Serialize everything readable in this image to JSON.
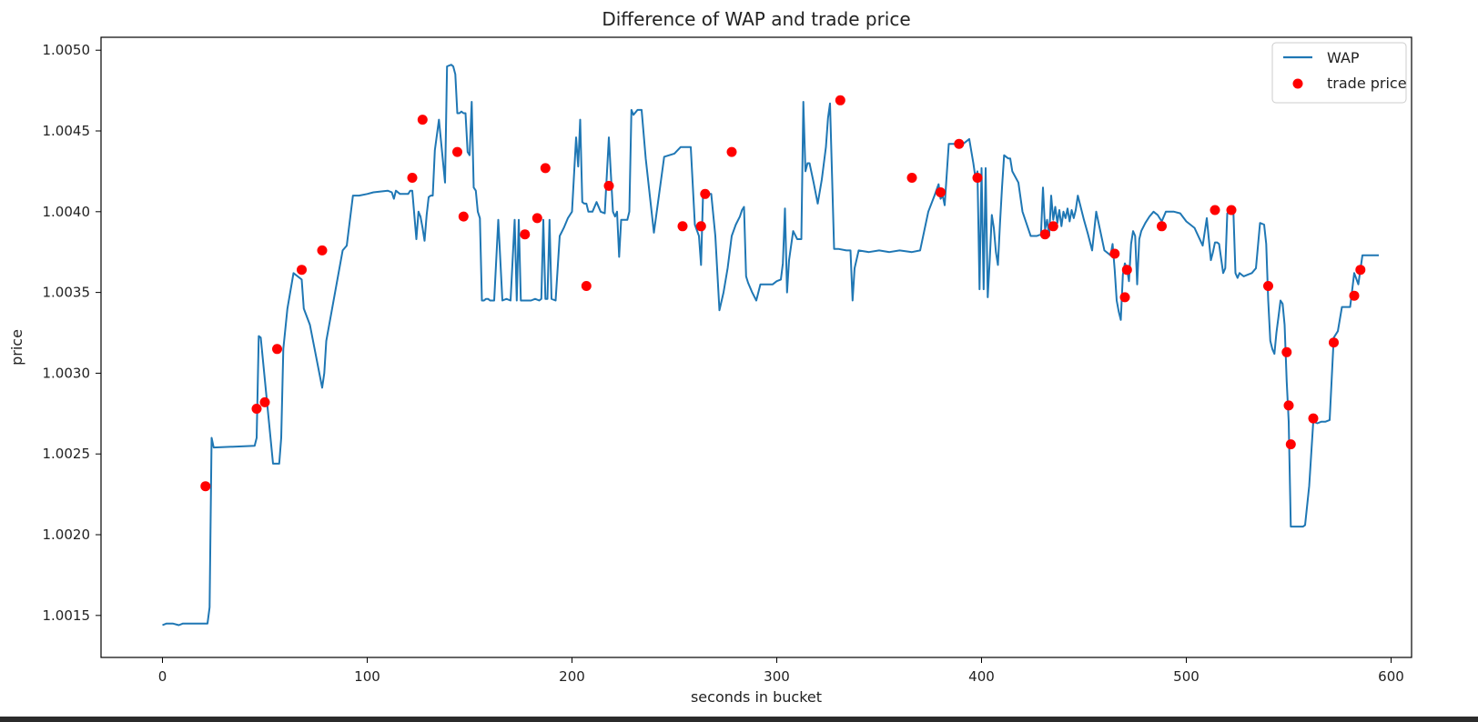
{
  "chart_data": {
    "type": "line",
    "title": "Difference of WAP and trade price",
    "xlabel": "seconds in bucket",
    "ylabel": "price",
    "xlim": [
      -30,
      610
    ],
    "ylim": [
      1.00124,
      1.00508
    ],
    "x_ticks": [
      0,
      100,
      200,
      300,
      400,
      500,
      600
    ],
    "x_tick_labels": [
      "0",
      "100",
      "200",
      "300",
      "400",
      "500",
      "600"
    ],
    "y_ticks": [
      1.0015,
      1.002,
      1.0025,
      1.003,
      1.0035,
      1.004,
      1.0045,
      1.005
    ],
    "y_tick_labels": [
      "1.0015",
      "1.0020",
      "1.0025",
      "1.0030",
      "1.0035",
      "1.0040",
      "1.0045",
      "1.0050"
    ],
    "grid": false,
    "legend_position": "top-right",
    "series": [
      {
        "name": "WAP",
        "kind": "line",
        "color": "#1f77b4",
        "x": [
          0,
          2,
          5,
          8,
          10,
          14,
          18,
          20,
          22,
          23,
          24,
          25,
          45,
          46,
          47,
          48,
          50,
          54,
          55,
          56,
          57,
          58,
          59,
          61,
          64,
          68,
          69,
          72,
          78,
          79,
          80,
          88,
          90,
          93,
          96,
          100,
          103,
          110,
          112,
          113,
          114,
          116,
          120,
          121,
          122,
          124,
          125,
          126,
          127,
          128,
          129,
          130,
          131,
          132,
          133,
          135,
          138,
          139,
          141,
          142,
          143,
          144,
          145,
          146,
          147,
          148,
          149,
          150,
          151,
          152,
          153,
          154,
          155,
          156,
          157,
          158,
          159,
          160,
          162,
          164,
          166,
          168,
          170,
          172,
          173,
          174,
          175,
          176,
          177,
          178,
          180,
          182,
          184,
          185,
          186,
          187,
          188,
          189,
          190,
          192,
          194,
          196,
          198,
          200,
          202,
          203,
          204,
          205,
          206,
          207,
          208,
          210,
          212,
          214,
          216,
          218,
          220,
          221,
          222,
          223,
          224,
          225,
          226,
          227,
          228,
          229,
          230,
          232,
          234,
          236,
          240,
          245,
          250,
          253,
          254,
          255,
          256,
          257,
          258,
          260,
          262,
          263,
          264,
          265,
          266,
          268,
          270,
          272,
          274,
          276,
          278,
          280,
          282,
          283,
          284,
          285,
          286,
          288,
          290,
          292,
          294,
          296,
          298,
          300,
          302,
          303,
          304,
          305,
          306,
          308,
          310,
          312,
          313,
          314,
          315,
          316,
          318,
          320,
          322,
          324,
          325,
          326,
          328,
          330,
          334,
          336,
          337,
          338,
          340,
          345,
          350,
          355,
          360,
          366,
          370,
          374,
          377,
          379,
          380,
          381,
          382,
          384,
          386,
          388,
          390,
          393,
          394,
          396,
          397,
          398,
          399,
          400,
          401,
          402,
          403,
          404,
          405,
          406,
          407,
          408,
          409,
          410,
          411,
          412,
          413,
          414,
          415,
          418,
          420,
          424,
          427,
          429,
          430,
          431,
          432,
          433,
          434,
          435,
          436,
          437,
          438,
          439,
          440,
          441,
          442,
          443,
          444,
          445,
          446,
          447,
          448,
          450,
          452,
          454,
          456,
          460,
          463,
          464,
          465,
          466,
          467,
          468,
          469,
          470,
          471,
          472,
          473,
          474,
          475,
          476,
          477,
          478,
          480,
          482,
          484,
          486,
          488,
          490,
          494,
          497,
          500,
          504,
          508,
          510,
          512,
          513,
          514,
          515,
          516,
          518,
          519,
          520,
          521,
          522,
          523,
          524,
          525,
          526,
          528,
          530,
          532,
          534,
          536,
          538,
          539,
          540,
          541,
          542,
          543,
          544,
          545,
          546,
          547,
          548,
          549,
          550,
          551,
          552,
          553,
          554,
          555,
          556,
          557,
          558,
          560,
          562,
          564,
          566,
          568,
          570,
          572,
          574,
          576,
          578,
          580,
          582,
          584,
          586,
          588,
          590,
          594
        ],
        "y": [
          1.00144,
          1.00145,
          1.00145,
          1.00144,
          1.00145,
          1.00145,
          1.00145,
          1.00145,
          1.00145,
          1.00155,
          1.0026,
          1.00254,
          1.00255,
          1.0026,
          1.00323,
          1.00322,
          1.00296,
          1.00244,
          1.00244,
          1.00244,
          1.00244,
          1.0026,
          1.00315,
          1.0034,
          1.00362,
          1.00358,
          1.0034,
          1.0033,
          1.00291,
          1.003,
          1.0032,
          1.00376,
          1.00379,
          1.0041,
          1.0041,
          1.00411,
          1.00412,
          1.00413,
          1.00412,
          1.00408,
          1.00413,
          1.00411,
          1.00411,
          1.00413,
          1.00413,
          1.00383,
          1.004,
          1.00397,
          1.0039,
          1.00382,
          1.00398,
          1.00409,
          1.0041,
          1.0041,
          1.00438,
          1.00457,
          1.00418,
          1.0049,
          1.00491,
          1.0049,
          1.00485,
          1.00461,
          1.00461,
          1.00462,
          1.00461,
          1.00461,
          1.00437,
          1.00435,
          1.00468,
          1.00415,
          1.00413,
          1.004,
          1.00396,
          1.00345,
          1.00345,
          1.00346,
          1.00346,
          1.00345,
          1.00345,
          1.00395,
          1.00345,
          1.00346,
          1.00345,
          1.00395,
          1.00345,
          1.00395,
          1.00345,
          1.00345,
          1.00345,
          1.00345,
          1.00345,
          1.00346,
          1.00345,
          1.00346,
          1.00395,
          1.00346,
          1.00346,
          1.00395,
          1.00346,
          1.00345,
          1.00385,
          1.0039,
          1.00396,
          1.004,
          1.00446,
          1.00428,
          1.00457,
          1.00406,
          1.00405,
          1.00405,
          1.004,
          1.004,
          1.00406,
          1.004,
          1.00399,
          1.00446,
          1.004,
          1.00397,
          1.004,
          1.00372,
          1.00395,
          1.00395,
          1.00395,
          1.00395,
          1.004,
          1.00463,
          1.0046,
          1.00463,
          1.00463,
          1.00433,
          1.00387,
          1.00434,
          1.00436,
          1.0044,
          1.0044,
          1.0044,
          1.0044,
          1.0044,
          1.0044,
          1.00392,
          1.00385,
          1.00367,
          1.00411,
          1.00411,
          1.00411,
          1.00411,
          1.00385,
          1.00339,
          1.0035,
          1.00365,
          1.00385,
          1.00392,
          1.00397,
          1.00401,
          1.00403,
          1.0036,
          1.00356,
          1.0035,
          1.00345,
          1.00355,
          1.00355,
          1.00355,
          1.00355,
          1.00357,
          1.00358,
          1.00368,
          1.00402,
          1.0035,
          1.0037,
          1.00388,
          1.00383,
          1.00383,
          1.00468,
          1.00425,
          1.0043,
          1.0043,
          1.00418,
          1.00405,
          1.0042,
          1.0044,
          1.00458,
          1.00467,
          1.00377,
          1.00377,
          1.00376,
          1.00376,
          1.00345,
          1.00365,
          1.00376,
          1.00375,
          1.00376,
          1.00375,
          1.00376,
          1.00375,
          1.00376,
          1.004,
          1.0041,
          1.00417,
          1.00408,
          1.0041,
          1.00404,
          1.00442,
          1.00442,
          1.00442,
          1.00441,
          1.00444,
          1.00445,
          1.0043,
          1.00421,
          1.00425,
          1.00352,
          1.00427,
          1.00352,
          1.00427,
          1.00347,
          1.0037,
          1.00398,
          1.0039,
          1.00375,
          1.00367,
          1.00393,
          1.00415,
          1.00435,
          1.00434,
          1.00433,
          1.00433,
          1.00425,
          1.00418,
          1.004,
          1.00385,
          1.00385,
          1.00386,
          1.00415,
          1.00389,
          1.00395,
          1.00385,
          1.0041,
          1.00395,
          1.00403,
          1.00393,
          1.00401,
          1.00391,
          1.004,
          1.00396,
          1.00402,
          1.00394,
          1.00401,
          1.00396,
          1.00401,
          1.0041,
          1.00405,
          1.00395,
          1.00386,
          1.00376,
          1.004,
          1.00376,
          1.00373,
          1.0038,
          1.00364,
          1.00345,
          1.00338,
          1.00333,
          1.00361,
          1.00368,
          1.00365,
          1.00357,
          1.0038,
          1.00388,
          1.00385,
          1.00355,
          1.00383,
          1.00388,
          1.00393,
          1.00397,
          1.004,
          1.00398,
          1.00394,
          1.004,
          1.004,
          1.00399,
          1.00394,
          1.0039,
          1.00379,
          1.00396,
          1.0037,
          1.00375,
          1.00381,
          1.00381,
          1.0038,
          1.00362,
          1.00365,
          1.00399,
          1.004,
          1.00401,
          1.00399,
          1.00362,
          1.00359,
          1.00362,
          1.0036,
          1.00361,
          1.00362,
          1.00365,
          1.00393,
          1.00392,
          1.0038,
          1.00345,
          1.0032,
          1.00315,
          1.00312,
          1.00325,
          1.00335,
          1.00345,
          1.00343,
          1.0033,
          1.00295,
          1.0027,
          1.00205,
          1.00205,
          1.00205,
          1.00205,
          1.00205,
          1.00205,
          1.00205,
          1.00206,
          1.0023,
          1.0027,
          1.00269,
          1.0027,
          1.0027,
          1.00271,
          1.00322,
          1.00326,
          1.00341,
          1.00341,
          1.00341,
          1.00362,
          1.00355,
          1.00373,
          1.00373,
          1.00373,
          1.00373
        ]
      },
      {
        "name": "trade price",
        "kind": "scatter",
        "color": "#ff0000",
        "x": [
          21,
          46,
          50,
          56,
          68,
          78,
          122,
          127,
          144,
          147,
          177,
          183,
          187,
          207,
          218,
          254,
          263,
          265,
          278,
          331,
          366,
          380,
          389,
          398,
          431,
          435,
          465,
          470,
          471,
          488,
          514,
          522,
          540,
          549,
          550,
          551,
          562,
          572,
          582,
          585
        ],
        "y": [
          1.0023,
          1.00278,
          1.00282,
          1.00315,
          1.00364,
          1.00376,
          1.00421,
          1.00457,
          1.00437,
          1.00397,
          1.00386,
          1.00396,
          1.00427,
          1.00354,
          1.00416,
          1.00391,
          1.00391,
          1.00411,
          1.00437,
          1.00469,
          1.00421,
          1.00412,
          1.00442,
          1.00421,
          1.00386,
          1.00391,
          1.00374,
          1.00347,
          1.00364,
          1.00391,
          1.00401,
          1.00401,
          1.00354,
          1.00313,
          1.0028,
          1.00256,
          1.00272,
          1.00319,
          1.00348,
          1.00364
        ]
      }
    ]
  }
}
